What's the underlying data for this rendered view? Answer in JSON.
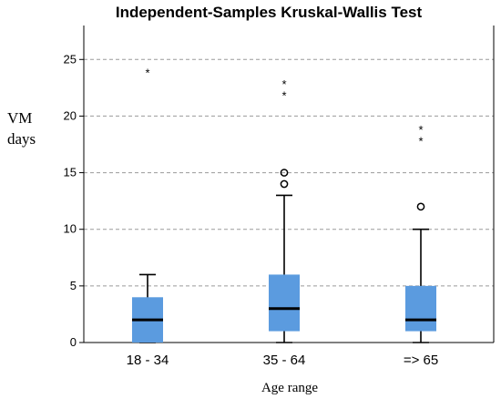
{
  "chart_data": {
    "type": "boxplot",
    "title": "Independent-Samples Kruskal-Wallis Test",
    "xlabel": "Age range",
    "ylabel_lines": [
      "VM",
      "days"
    ],
    "ylim": [
      0,
      28
    ],
    "yticks": [
      0,
      5,
      10,
      15,
      20,
      25
    ],
    "grid": true,
    "box_color": "#5b9bdf",
    "categories": [
      "18 - 34",
      "35 - 64",
      "=> 65"
    ],
    "boxes": [
      {
        "category": "18 - 34",
        "min": 0,
        "q1": 0,
        "median": 2,
        "q3": 4,
        "max": 6,
        "outliers": [],
        "extremes": [
          24
        ]
      },
      {
        "category": "35 - 64",
        "min": 0,
        "q1": 1,
        "median": 3,
        "q3": 6,
        "max": 13,
        "outliers": [
          14,
          15
        ],
        "extremes": [
          22,
          23
        ]
      },
      {
        "category": "=> 65",
        "min": 0,
        "q1": 1,
        "median": 2,
        "q3": 5,
        "max": 10,
        "outliers": [
          12
        ],
        "extremes": [
          18,
          19
        ]
      }
    ]
  }
}
